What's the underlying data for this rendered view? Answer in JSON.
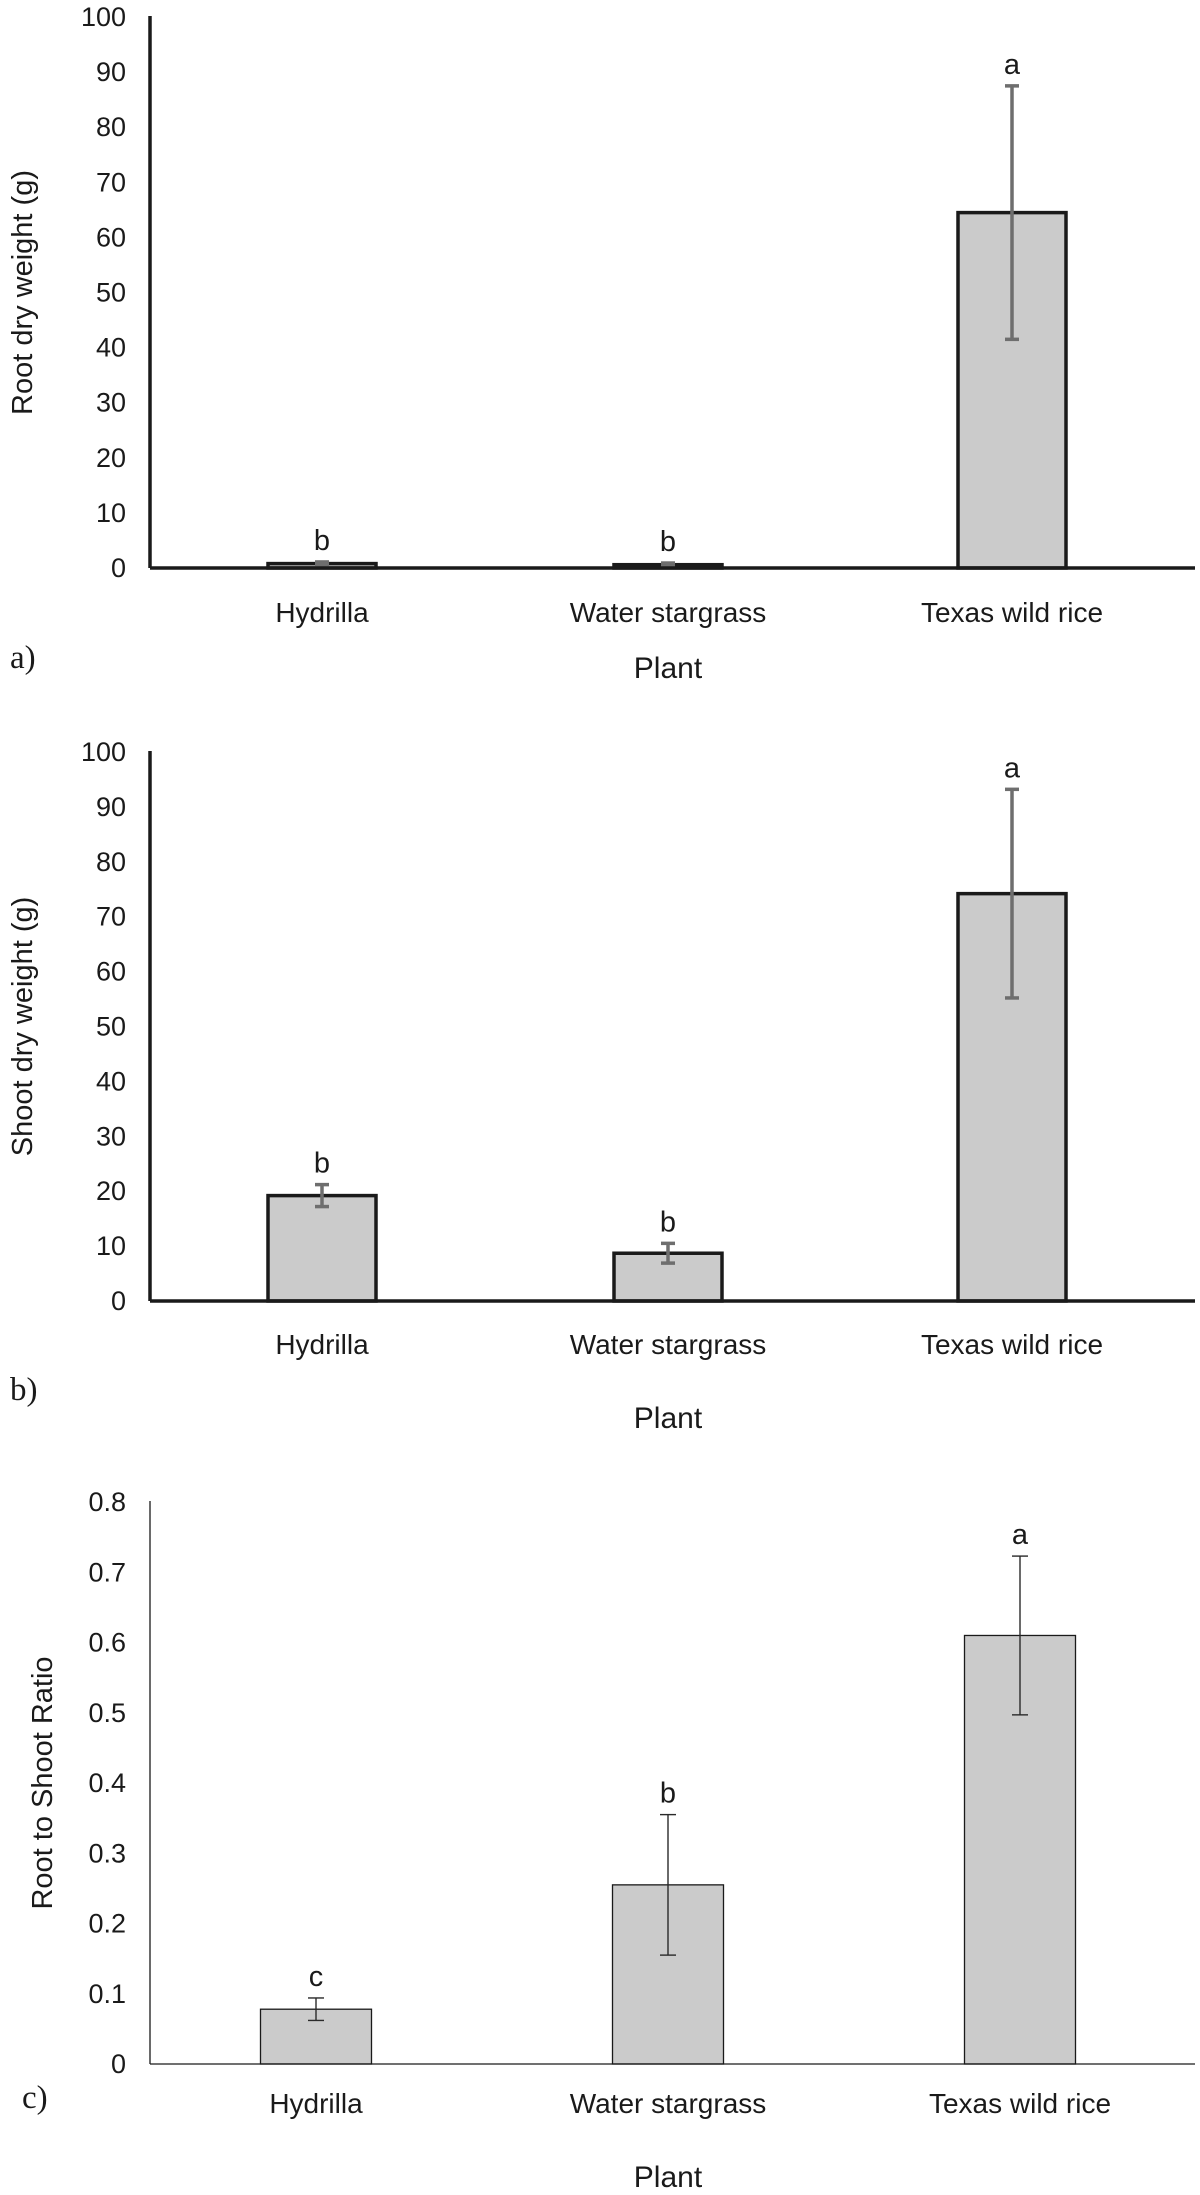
{
  "chart_data": [
    {
      "type": "bar",
      "panel_label": "a)",
      "categories": [
        "Hydrilla",
        "Water stargrass",
        "Texas wild rice"
      ],
      "values": [
        0.8,
        0.6,
        64.5
      ],
      "error": [
        0.3,
        0.3,
        23
      ],
      "significance": [
        "b",
        "b",
        "a"
      ],
      "ylabel": "Root dry weight (g)",
      "xlabel": "Plant",
      "ylim": [
        0,
        100
      ],
      "yticks": [
        0,
        10,
        20,
        30,
        40,
        50,
        60,
        70,
        80,
        90,
        100
      ],
      "ytick_labels": [
        "0",
        "10",
        "20",
        "30",
        "40",
        "50",
        "60",
        "70",
        "80",
        "90",
        "100"
      ],
      "bar_color": "#cbcbcb",
      "grid": false,
      "legend": "none"
    },
    {
      "type": "bar",
      "panel_label": "b)",
      "categories": [
        "Hydrilla",
        "Water stargrass",
        "Texas wild rice"
      ],
      "values": [
        19.2,
        8.7,
        74.2
      ],
      "error": [
        2,
        1.8,
        19
      ],
      "significance": [
        "b",
        "b",
        "a"
      ],
      "ylabel": "Shoot dry weight (g)",
      "xlabel": "Plant",
      "ylim": [
        0,
        100
      ],
      "yticks": [
        0,
        10,
        20,
        30,
        40,
        50,
        60,
        70,
        80,
        90,
        100
      ],
      "ytick_labels": [
        "0",
        "10",
        "20",
        "30",
        "40",
        "50",
        "60",
        "70",
        "80",
        "90",
        "100"
      ],
      "bar_color": "#cbcbcb",
      "grid": false,
      "legend": "none"
    },
    {
      "type": "bar",
      "panel_label": "c)",
      "categories": [
        "Hydrilla",
        "Water stargrass",
        "Texas wild rice"
      ],
      "values": [
        0.078,
        0.255,
        0.61
      ],
      "error": [
        0.016,
        0.1,
        0.113
      ],
      "significance": [
        "c",
        "b",
        "a"
      ],
      "ylabel": "Root to Shoot Ratio",
      "xlabel": "Plant",
      "ylim": [
        0,
        0.8
      ],
      "yticks": [
        0,
        0.1,
        0.2,
        0.3,
        0.4,
        0.5,
        0.6,
        0.7,
        0.8
      ],
      "ytick_labels": [
        "0",
        "0.1",
        "0.2",
        "0.3",
        "0.4",
        "0.5",
        "0.6",
        "0.7",
        "0.8"
      ],
      "bar_color": "#cbcbcb",
      "grid": false,
      "legend": "none"
    }
  ]
}
